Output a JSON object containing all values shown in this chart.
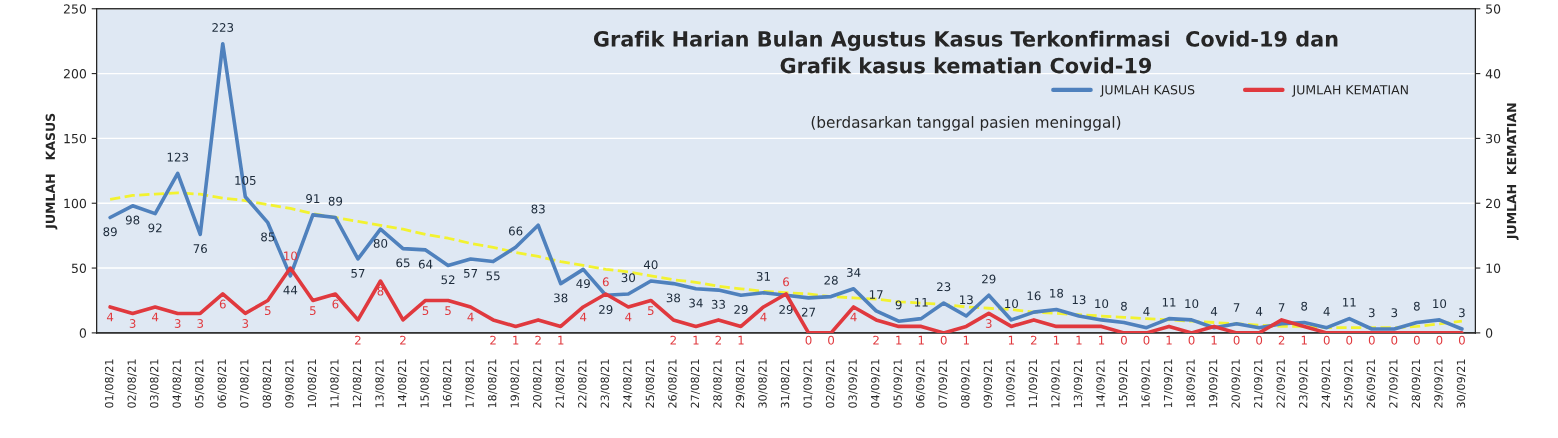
{
  "chart_data": {
    "type": "line",
    "title": "Grafik Harian Bulan Agustus Kasus Terkonfirmasi  Covid-19 dan\nGrafik kasus kematian Covid-19",
    "subtitle": "(berdasarkan tanggal pasien meninggal)",
    "ylabel": "JUMLAH   KASUS",
    "y2label": "JUMLAH  KEMATIAN",
    "categories": [
      "01/08/21",
      "02/08/21",
      "03/08/21",
      "04/08/21",
      "05/08/21",
      "06/08/21",
      "07/08/21",
      "08/08/21",
      "09/08/21",
      "10/08/21",
      "11/08/21",
      "12/08/21",
      "13/08/21",
      "14/08/21",
      "15/08/21",
      "16/08/21",
      "17/08/21",
      "18/08/21",
      "19/08/21",
      "20/08/21",
      "21/08/21",
      "22/08/21",
      "23/08/21",
      "24/08/21",
      "25/08/21",
      "26/08/21",
      "27/08/21",
      "28/08/21",
      "29/08/21",
      "30/08/21",
      "31/08/21",
      "01/09/21",
      "02/09/21",
      "03/09/21",
      "04/09/21",
      "05/09/21",
      "06/09/21",
      "07/09/21",
      "08/09/21",
      "09/09/21",
      "10/09/21",
      "11/09/21",
      "12/09/21",
      "13/09/21",
      "14/09/21",
      "15/09/21",
      "16/09/21",
      "17/09/21",
      "18/09/21",
      "19/09/21",
      "20/09/21",
      "21/09/21",
      "22/09/21",
      "23/09/21",
      "24/09/21",
      "25/09/21",
      "26/09/21",
      "27/09/21",
      "28/09/21",
      "29/09/21",
      "30/09/21"
    ],
    "series": [
      {
        "name": "JUMLAH KASUS",
        "color": "#4f81bd",
        "values": [
          89,
          98,
          92,
          123,
          76,
          223,
          105,
          85,
          44,
          91,
          89,
          57,
          80,
          65,
          64,
          52,
          57,
          55,
          66,
          83,
          38,
          49,
          29,
          30,
          40,
          38,
          34,
          33,
          29,
          31,
          29,
          27,
          28,
          34,
          17,
          9,
          11,
          23,
          13,
          29,
          10,
          16,
          18,
          13,
          10,
          8,
          4,
          11,
          10,
          4,
          7,
          4,
          7,
          8,
          4,
          11,
          3,
          3,
          8,
          10,
          3
        ],
        "value_labels": [
          "89",
          "98",
          "92",
          "123",
          "76",
          "223",
          "105",
          "85",
          "44",
          "91",
          "89",
          "57",
          "80",
          "65",
          "64",
          "52",
          "57",
          "55",
          "66",
          "83",
          "38",
          "49",
          "29",
          "30",
          "40",
          "38",
          "34",
          "33",
          "29",
          "31",
          "29",
          "27",
          "28",
          "34",
          "17",
          "9",
          "11",
          "23",
          "13",
          "29",
          "10",
          "16",
          "18",
          "13",
          "10",
          "8",
          "4",
          "11",
          "10",
          "4",
          "7",
          "4",
          "7",
          "8",
          "4",
          "11",
          "3",
          "3",
          "8",
          "10",
          "3"
        ]
      },
      {
        "name": "JUMLAH KEMATIAN",
        "color": "#e0393e",
        "axis": "y2",
        "values": [
          4,
          3,
          4,
          3,
          3,
          6,
          3,
          5,
          10,
          5,
          6,
          2,
          8,
          2,
          5,
          5,
          4,
          2,
          1,
          2,
          1,
          4,
          6,
          4,
          5,
          2,
          1,
          2,
          1,
          4,
          6,
          0,
          0,
          4,
          2,
          1,
          1,
          0,
          1,
          3,
          1,
          2,
          1,
          1,
          1,
          0,
          0,
          1,
          0,
          1,
          0,
          0,
          2,
          1,
          0,
          0,
          0,
          0,
          0,
          0,
          0
        ],
        "value_labels": [
          "4",
          "3",
          "4",
          "3",
          "3",
          "6",
          "3",
          "5",
          "10",
          "5",
          "6",
          "2",
          "8",
          "2",
          "5",
          "5",
          "4",
          "2",
          "1",
          "2",
          "1",
          "4",
          "6",
          "4",
          "5",
          "2",
          "1",
          "2",
          "1",
          "4",
          "6",
          "0",
          "0",
          "4",
          "2",
          "1",
          "1",
          "0",
          "1",
          "3",
          "1",
          "2",
          "1",
          "1",
          "1",
          "0",
          "0",
          "1",
          "0",
          "1",
          "0",
          "0",
          "2",
          "1",
          "0",
          "0",
          "0",
          "0",
          "0",
          "0",
          "0"
        ]
      },
      {
        "type": "line",
        "color": "#f2f230",
        "line_style": "dashed",
        "values": [
          103,
          106,
          107,
          108,
          107,
          104,
          102,
          99,
          96,
          92,
          89,
          86,
          83,
          80,
          76,
          73,
          69,
          66,
          62,
          59,
          55,
          52,
          49,
          47,
          44,
          41,
          39,
          36,
          34,
          32,
          31,
          30,
          28,
          27,
          26,
          24,
          23,
          22,
          20,
          19,
          18,
          16,
          15,
          14,
          13,
          12,
          11,
          10,
          9,
          8,
          7,
          6,
          5,
          5,
          4,
          4,
          4,
          4,
          5,
          7,
          9
        ]
      }
    ],
    "ylim": [
      0,
      250
    ],
    "yticks": [
      0,
      50,
      100,
      150,
      200,
      250
    ],
    "y2lim": [
      0,
      50
    ],
    "y2ticks": [
      0,
      10,
      20,
      30,
      40,
      50
    ],
    "grid": "y",
    "legend": "top right"
  }
}
